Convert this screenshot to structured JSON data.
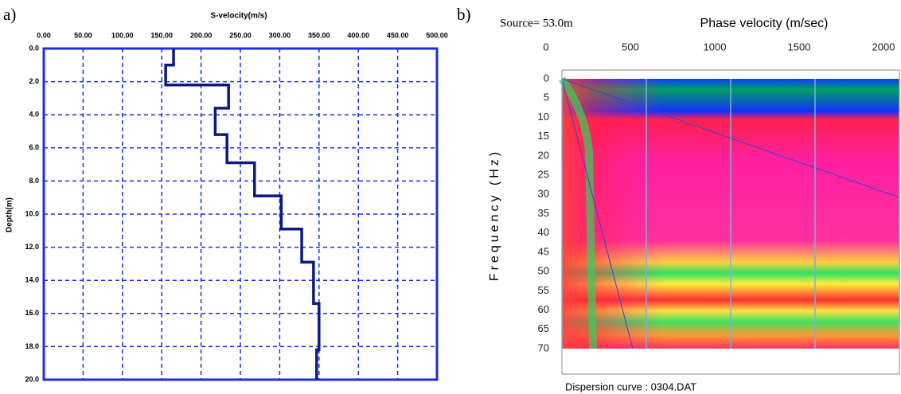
{
  "chart_data": [
    {
      "type": "line",
      "panel_label": "a)",
      "x_label": "S-velocity(m/s)",
      "y_label": "Depth(m)",
      "x": [
        165,
        165,
        155,
        155,
        235,
        235,
        218,
        218,
        233,
        233,
        268,
        268,
        302,
        302,
        328,
        328,
        343,
        343,
        350,
        350,
        347,
        347
      ],
      "y": [
        0,
        1.0,
        1.0,
        2.2,
        2.2,
        3.6,
        3.6,
        5.2,
        5.2,
        6.9,
        6.9,
        8.9,
        8.9,
        10.9,
        10.9,
        12.9,
        12.9,
        15.4,
        15.4,
        18.2,
        18.2,
        20
      ],
      "color": "#0a1a80",
      "grid": true,
      "grid_color": "#1a2ee6",
      "y_inverted": true,
      "xlim": [
        0,
        500
      ],
      "ylim": [
        0,
        20
      ],
      "xticks": [
        {
          "value": 0,
          "label": "0.00"
        },
        {
          "value": 50,
          "label": "50.00"
        },
        {
          "value": 100,
          "label": "100.00"
        },
        {
          "value": 150,
          "label": "150.00"
        },
        {
          "value": 200,
          "label": "200.00"
        },
        {
          "value": 250,
          "label": "250.00"
        },
        {
          "value": 300,
          "label": "300.00"
        },
        {
          "value": 350,
          "label": "350.00"
        },
        {
          "value": 400,
          "label": "400.00"
        },
        {
          "value": 450,
          "label": "450.00"
        },
        {
          "value": 500,
          "label": "500.00"
        }
      ],
      "yticks": [
        {
          "value": 0,
          "label": "0.0"
        },
        {
          "value": 2,
          "label": "2.0"
        },
        {
          "value": 4,
          "label": "4.0"
        },
        {
          "value": 6,
          "label": "6.0"
        },
        {
          "value": 8,
          "label": "8.0"
        },
        {
          "value": 10,
          "label": "10.0"
        },
        {
          "value": 12,
          "label": "12.0"
        },
        {
          "value": 14,
          "label": "14.0"
        },
        {
          "value": 16,
          "label": "16.0"
        },
        {
          "value": 18,
          "label": "18.0"
        },
        {
          "value": 20,
          "label": "20.0"
        }
      ]
    },
    {
      "type": "heatmap",
      "panel_label": "b)",
      "subtitle": "Source= 53.0m",
      "x_label": "Phase velocity (m/sec)",
      "y_label": "Frequency (Hz)",
      "footer": "Dispersion curve : 0304.DAT",
      "grid": true,
      "grid_color": "#7fb0d8",
      "y_inverted": true,
      "xlim": [
        0,
        2000
      ],
      "ylim": [
        0,
        70
      ],
      "xticks": [
        0,
        500,
        1000,
        1500,
        2000
      ],
      "yticks": [
        0,
        5,
        10,
        15,
        20,
        25,
        30,
        35,
        40,
        45,
        50,
        55,
        60,
        65,
        70
      ]
    }
  ]
}
